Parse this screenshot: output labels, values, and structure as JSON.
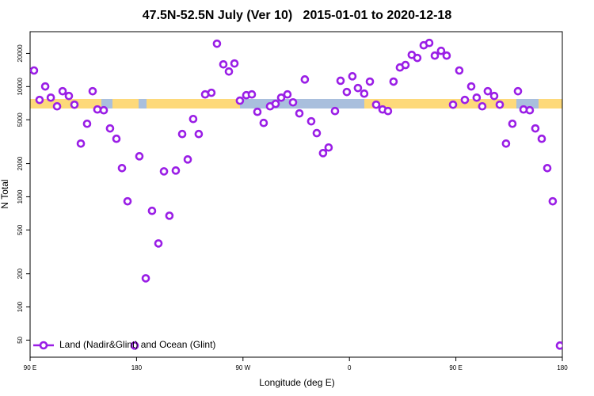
{
  "chart_data": {
    "type": "scatter",
    "title": "47.5N-52.5N July (Ver 10)   2015-01-01 to 2020-12-18",
    "x_label": "Longitude (deg E)",
    "y_label": "N Total",
    "log_y": true,
    "grid": false,
    "legend_position": "bottom-left",
    "xlim": [
      90,
      540
    ],
    "xticks": [
      {
        "value": 90,
        "label": "90 E"
      },
      180,
      {
        "value": 270,
        "label": "90 W"
      },
      {
        "value": 360,
        "label": "0"
      },
      {
        "value": 450,
        "label": "90 E"
      },
      {
        "value": 540,
        "label": "180"
      }
    ],
    "ylim": [
      35,
      31500
    ],
    "yticks": [
      50,
      100,
      200,
      500,
      1000,
      2000,
      5000,
      10000,
      20000
    ],
    "x": [
      93.3,
      98.0,
      102.8,
      107.5,
      112.8,
      117.5,
      122.8,
      127.5,
      132.9,
      138.2,
      142.9,
      146.9,
      152.3,
      157.6,
      163.0,
      167.7,
      172.4,
      178.4,
      182.4,
      187.8,
      193.1,
      198.5,
      203.2,
      207.8,
      213.2,
      218.6,
      223.3,
      227.9,
      232.6,
      238.0,
      243.3,
      248.0,
      253.4,
      258.1,
      262.8,
      267.4,
      272.8,
      277.5,
      282.2,
      287.5,
      292.9,
      297.6,
      302.3,
      307.6,
      312.3,
      317.7,
      322.3,
      327.7,
      332.4,
      337.7,
      342.4,
      347.8,
      352.5,
      357.8,
      362.5,
      367.2,
      372.5,
      377.3,
      382.6,
      388.0,
      392.6,
      397.3,
      402.7,
      407.4,
      412.7,
      417.4,
      422.8,
      427.5,
      432.2,
      437.5,
      442.2,
      447.6,
      452.9,
      457.6,
      463.0,
      467.6,
      472.3,
      477.0,
      482.4,
      487.1,
      492.4,
      497.8,
      502.5,
      507.2,
      512.5,
      517.2,
      522.6,
      527.3,
      531.9,
      538.0
    ],
    "series": [
      {
        "name": "Land (Nadir&Glint) and Ocean (Glint)",
        "color": "#9a1ee6",
        "values": [
          14000,
          7570,
          10030,
          7940,
          6620,
          9080,
          8220,
          6850,
          3040,
          4600,
          9080,
          6200,
          6100,
          4170,
          3360,
          1820,
          910,
          44.6,
          2330,
          182,
          745,
          377,
          1700,
          673,
          1730,
          3710,
          2180,
          5080,
          3710,
          8490,
          8790,
          24500,
          15900,
          13700,
          16200,
          7450,
          8350,
          8490,
          5900,
          4680,
          6620,
          6970,
          7940,
          8490,
          7190,
          5710,
          11600,
          4840,
          3780,
          2490,
          2800,
          6000,
          11300,
          8930,
          12400,
          9700,
          8630,
          11100,
          6850,
          6200,
          6000,
          11100,
          14900,
          15700,
          19400,
          18200,
          23700,
          24900,
          19100,
          21100,
          19100,
          6850,
          14000,
          7570,
          10030,
          7940,
          6620,
          9080,
          8220,
          6850,
          3040,
          4600,
          9080,
          6200,
          6100,
          4170,
          3360,
          1820,
          910,
          44.6
        ]
      }
    ]
  }
}
